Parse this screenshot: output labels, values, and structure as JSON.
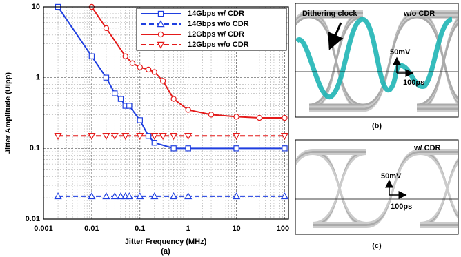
{
  "chart_data": {
    "type": "line",
    "x_label": "Jitter Frequency (MHz)",
    "y_label": "Jitter Amplitude (UIpp)",
    "caption": "(a)",
    "log_x": true,
    "log_y": true,
    "grid": true,
    "legend": "upper right",
    "xlim": [
      0.001,
      120
    ],
    "xticks": [
      0.001,
      0.01,
      0.1,
      1,
      10,
      100
    ],
    "ylim": [
      0.01,
      10
    ],
    "yticks": [
      0.01,
      0.1,
      1,
      10
    ],
    "series": [
      {
        "name": "14Gbps w/ CDR",
        "color": "#1f3fe0",
        "marker": "square",
        "dash": false,
        "x": [
          0.002,
          0.01,
          0.02,
          0.03,
          0.04,
          0.05,
          0.06,
          0.1,
          0.15,
          0.2,
          0.5,
          1,
          10,
          100
        ],
        "values": [
          10,
          2,
          1,
          0.6,
          0.5,
          0.4,
          0.4,
          0.25,
          0.15,
          0.12,
          0.1,
          0.1,
          0.1,
          0.1
        ]
      },
      {
        "name": "14Gbps w/o CDR",
        "color": "#1f3fe0",
        "marker": "triangle-up",
        "dash": true,
        "x": [
          0.002,
          0.01,
          0.02,
          0.03,
          0.04,
          0.05,
          0.06,
          0.1,
          0.2,
          0.5,
          1,
          10,
          100
        ],
        "values": [
          0.021,
          0.021,
          0.021,
          0.021,
          0.021,
          0.021,
          0.021,
          0.021,
          0.021,
          0.021,
          0.021,
          0.021,
          0.021
        ]
      },
      {
        "name": "12Gbps w/ CDR",
        "color": "#e41a1a",
        "marker": "circle",
        "dash": false,
        "x": [
          0.01,
          0.02,
          0.05,
          0.07,
          0.1,
          0.15,
          0.2,
          0.3,
          0.5,
          1,
          3,
          10,
          30,
          100
        ],
        "values": [
          10,
          5,
          2,
          1.6,
          1.4,
          1.3,
          1.2,
          0.9,
          0.5,
          0.35,
          0.3,
          0.28,
          0.27,
          0.27
        ]
      },
      {
        "name": "12Gbps w/o CDR",
        "color": "#e41a1a",
        "marker": "triangle-down",
        "dash": true,
        "x": [
          0.002,
          0.01,
          0.02,
          0.03,
          0.05,
          0.1,
          0.2,
          0.3,
          0.5,
          1,
          10,
          100
        ],
        "values": [
          0.15,
          0.15,
          0.15,
          0.15,
          0.15,
          0.15,
          0.15,
          0.15,
          0.15,
          0.15,
          0.15,
          0.15
        ]
      }
    ]
  },
  "panels": [
    {
      "labels": [
        "Dithering clock",
        "w/o CDR",
        "50mV",
        "100ps"
      ],
      "caption": "(b)"
    },
    {
      "labels": [
        "w/ CDR",
        "50mV",
        "100ps"
      ],
      "caption": "(c)"
    }
  ]
}
